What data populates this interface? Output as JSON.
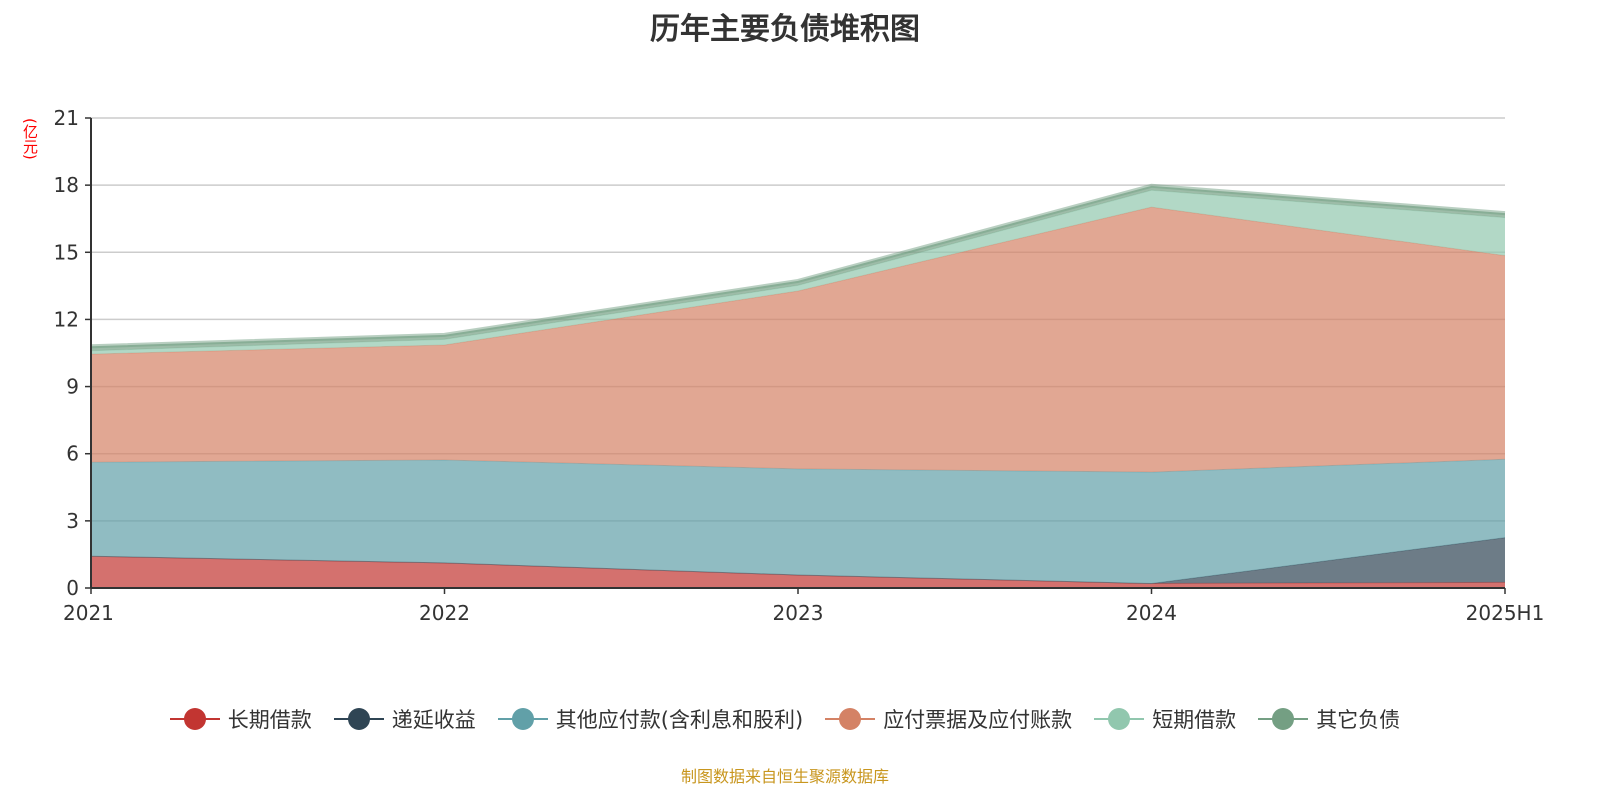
{
  "chart_data": {
    "type": "area",
    "stacked": true,
    "title": "历年主要负债堆积图",
    "ylabel": "(亿元)",
    "xlabel": "",
    "categories": [
      "2021",
      "2022",
      "2023",
      "2024",
      "2025H1"
    ],
    "ylim": [
      0,
      21
    ],
    "yticks": [
      0,
      3,
      6,
      9,
      12,
      15,
      18,
      21
    ],
    "grid": true,
    "legend_position": "bottom",
    "series": [
      {
        "name": "长期借款",
        "color": "#c23531",
        "values": [
          1.42,
          1.12,
          0.58,
          0.2,
          0.25
        ]
      },
      {
        "name": "递延收益",
        "color": "#2f4554",
        "values": [
          0,
          0,
          0,
          0,
          2.0
        ]
      },
      {
        "name": "其他应付款(含利息和股利)",
        "color": "#61a0a8",
        "values": [
          4.2,
          4.6,
          4.74,
          4.98,
          3.5
        ]
      },
      {
        "name": "应付票据及应付账款",
        "color": "#d48265",
        "values": [
          4.83,
          5.14,
          7.95,
          11.84,
          9.1
        ]
      },
      {
        "name": "短期借款",
        "color": "#91c7ae",
        "values": [
          0.15,
          0.25,
          0.25,
          0.75,
          1.7
        ]
      },
      {
        "name": "其它负债",
        "color": "#749f83",
        "values": [
          0.2,
          0.2,
          0.2,
          0.2,
          0.2
        ]
      }
    ]
  },
  "source": "制图数据来自恒生聚源数据库"
}
